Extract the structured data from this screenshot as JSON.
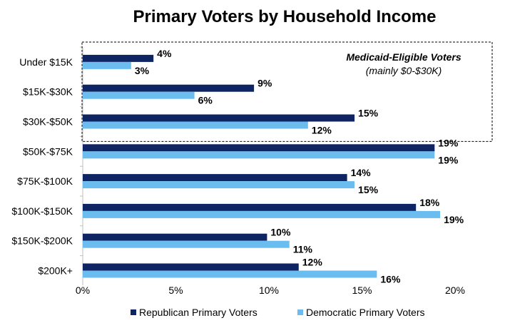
{
  "chart_data": {
    "type": "bar",
    "orientation": "horizontal",
    "title": "Primary Voters by Household Income",
    "categories": [
      "Under $15K",
      "$15K-$30K",
      "$30K-$50K",
      "$50K-$75K",
      "$75K-$100K",
      "$100K-$150K",
      "$150K-$200K",
      "$200K+"
    ],
    "series": [
      {
        "name": "Republican Primary Voters",
        "color": "#0F2462",
        "values": [
          3.8,
          9.2,
          14.6,
          18.9,
          14.2,
          17.9,
          9.9,
          11.6
        ],
        "labels": [
          "4%",
          "9%",
          "15%",
          "19%",
          "14%",
          "18%",
          "10%",
          "12%"
        ]
      },
      {
        "name": "Democratic Primary Voters",
        "color": "#6BBDF0",
        "values": [
          2.6,
          6.0,
          12.1,
          18.9,
          14.6,
          19.2,
          11.1,
          15.8
        ],
        "labels": [
          "3%",
          "6%",
          "12%",
          "19%",
          "15%",
          "19%",
          "11%",
          "16%"
        ]
      }
    ],
    "xlim": [
      0,
      20
    ],
    "xticks": [
      0,
      5,
      10,
      15,
      20
    ],
    "xtick_labels": [
      "0%",
      "5%",
      "10%",
      "15%",
      "20%"
    ],
    "grid": false,
    "legend_position": "bottom",
    "annotation": {
      "title": "Medicaid-Eligible Voters",
      "subtitle": "(mainly $0-$30K)",
      "covers_categories": [
        "Under $15K",
        "$15K-$30K",
        "$30K-$50K"
      ]
    }
  }
}
